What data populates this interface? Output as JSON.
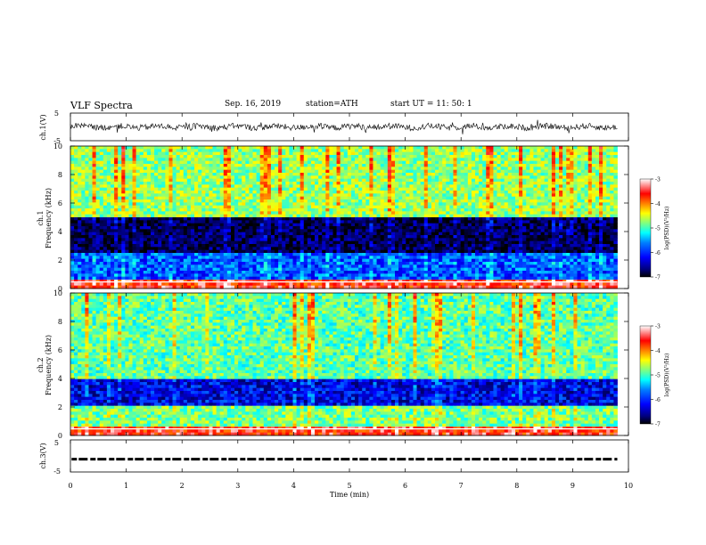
{
  "header": {
    "title": "VLF  Spectra",
    "date": "Sep. 16, 2019",
    "station": "station=ATH",
    "start": "start  UT  =    11: 50: 1"
  },
  "chart_data": [
    {
      "type": "line",
      "panel": "ch1",
      "ylabel": "ch.1(V)",
      "yticks": [
        "5",
        "-5"
      ],
      "ylim": [
        -5,
        5
      ],
      "xlim": [
        0,
        10
      ],
      "description_values": "dense noisy waveform centered near 0 V with amplitude about ±1.5 V from t=0 to 9.8 min"
    },
    {
      "type": "heatmap",
      "panel": "ch1-spectrogram",
      "ylabel": "ch.1\nFrequency  (kHz)",
      "yticks": [
        "0",
        "2",
        "4",
        "6",
        "8",
        "10"
      ],
      "ylim": [
        0,
        10
      ],
      "xlim": [
        0,
        9.8
      ],
      "colorbar": {
        "label": "log(PSD)(V²/Hz)",
        "ticks": [
          "-3",
          "-4",
          "-5",
          "-6",
          "-7"
        ],
        "range": [
          -7,
          -3
        ]
      },
      "bands_khz": [
        {
          "from": 0,
          "to": 0.6,
          "level": -3.5
        },
        {
          "from": 0.6,
          "to": 2.6,
          "level": -5.8
        },
        {
          "from": 2.6,
          "to": 5.0,
          "level": -6.7
        },
        {
          "from": 5.0,
          "to": 10,
          "level": -4.7
        }
      ]
    },
    {
      "type": "heatmap",
      "panel": "ch2-spectrogram",
      "ylabel": "ch.2\nFrequency  (kHz)",
      "yticks": [
        "0",
        "2",
        "4",
        "6",
        "8",
        "10"
      ],
      "ylim": [
        0,
        10
      ],
      "xlim": [
        0,
        9.8
      ],
      "colorbar": {
        "label": "log(PSD)(V²/Hz)",
        "ticks": [
          "-3",
          "-4",
          "-5",
          "-6",
          "-7"
        ],
        "range": [
          -7,
          -3
        ]
      },
      "bands_khz": [
        {
          "from": 0,
          "to": 0.6,
          "level": -3.5
        },
        {
          "from": 0.6,
          "to": 2.0,
          "level": -4.8
        },
        {
          "from": 2.0,
          "to": 4.0,
          "level": -6.2
        },
        {
          "from": 4.0,
          "to": 10,
          "level": -4.9
        }
      ]
    },
    {
      "type": "line",
      "panel": "ch3",
      "ylabel": "ch.3(V)",
      "yticks": [
        "5",
        "-5"
      ],
      "ylim": [
        -5,
        5
      ],
      "xlim": [
        0,
        10
      ],
      "description_values": "dashed trace near -1 V from t=0 to 9.8 min"
    }
  ],
  "xaxis": {
    "label": "Time  (min)",
    "ticks": [
      "0",
      "1",
      "2",
      "3",
      "4",
      "5",
      "6",
      "7",
      "8",
      "9",
      "10"
    ]
  },
  "colors": {
    "jet": [
      "#000000",
      "#000080",
      "#0000ff",
      "#0080ff",
      "#00ffff",
      "#80ff80",
      "#ffff00",
      "#ff8000",
      "#ff0000",
      "#ffffff"
    ]
  }
}
